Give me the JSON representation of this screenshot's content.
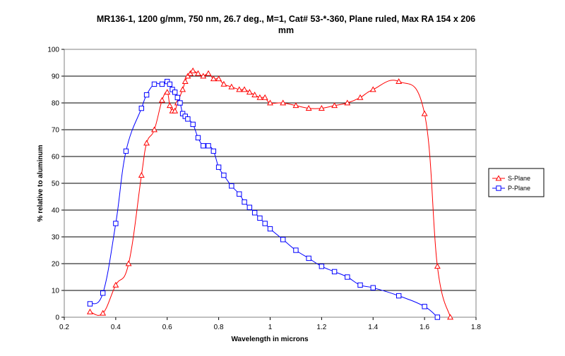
{
  "chart_data": {
    "type": "line",
    "title_lines": [
      "MR136-1, 1200 g/mm, 750 nm, 26.7 deg., M=1, Cat# 53-*-360, Plane ruled, Max RA 154 x 206",
      "mm"
    ],
    "xlabel": "Wavelength  in microns",
    "ylabel": "% relative to aluminum",
    "xlim": [
      0.2,
      1.8
    ],
    "ylim": [
      0,
      100
    ],
    "x_ticks": [
      0.2,
      0.4,
      0.6,
      0.8,
      1,
      1.2,
      1.4,
      1.6,
      1.8
    ],
    "x_tick_labels": [
      "0.2",
      "0.4",
      "0.6",
      "0.8",
      "1",
      "1.2",
      "1.4",
      "1.6",
      "1.8"
    ],
    "y_ticks": [
      0,
      10,
      20,
      30,
      40,
      50,
      60,
      70,
      80,
      90,
      100
    ],
    "y_tick_labels": [
      "0",
      "10",
      "20",
      "30",
      "40",
      "50",
      "60",
      "70",
      "80",
      "90",
      "100"
    ],
    "grid": "horizontal",
    "legend_position": "right",
    "series": [
      {
        "name": "S-Plane",
        "color": "#ff0000",
        "marker": "triangle",
        "points": [
          [
            0.3,
            2
          ],
          [
            0.35,
            1.5
          ],
          [
            0.4,
            12
          ],
          [
            0.45,
            20
          ],
          [
            0.5,
            53
          ],
          [
            0.52,
            65
          ],
          [
            0.55,
            70
          ],
          [
            0.58,
            81
          ],
          [
            0.6,
            84
          ],
          [
            0.61,
            79
          ],
          [
            0.62,
            77
          ],
          [
            0.63,
            77
          ],
          [
            0.64,
            80
          ],
          [
            0.66,
            85
          ],
          [
            0.67,
            88
          ],
          [
            0.68,
            90
          ],
          [
            0.69,
            91
          ],
          [
            0.7,
            92
          ],
          [
            0.72,
            91
          ],
          [
            0.74,
            90
          ],
          [
            0.76,
            91
          ],
          [
            0.78,
            89
          ],
          [
            0.8,
            89
          ],
          [
            0.82,
            87
          ],
          [
            0.85,
            86
          ],
          [
            0.88,
            85
          ],
          [
            0.9,
            85
          ],
          [
            0.92,
            84
          ],
          [
            0.94,
            83
          ],
          [
            0.96,
            82
          ],
          [
            0.98,
            82
          ],
          [
            1.0,
            80
          ],
          [
            1.05,
            80
          ],
          [
            1.1,
            79
          ],
          [
            1.15,
            78
          ],
          [
            1.2,
            78
          ],
          [
            1.25,
            79
          ],
          [
            1.3,
            80
          ],
          [
            1.35,
            82
          ],
          [
            1.4,
            85
          ],
          [
            1.5,
            88
          ],
          [
            1.6,
            76
          ],
          [
            1.65,
            19
          ],
          [
            1.7,
            0
          ]
        ]
      },
      {
        "name": "P-Plane",
        "color": "#0000ff",
        "marker": "square",
        "points": [
          [
            0.3,
            5
          ],
          [
            0.35,
            9
          ],
          [
            0.4,
            35
          ],
          [
            0.44,
            62
          ],
          [
            0.5,
            78
          ],
          [
            0.52,
            83
          ],
          [
            0.55,
            87
          ],
          [
            0.58,
            87
          ],
          [
            0.6,
            88
          ],
          [
            0.61,
            87
          ],
          [
            0.62,
            85
          ],
          [
            0.63,
            84
          ],
          [
            0.64,
            82
          ],
          [
            0.65,
            80
          ],
          [
            0.66,
            76
          ],
          [
            0.67,
            75
          ],
          [
            0.68,
            74
          ],
          [
            0.7,
            72
          ],
          [
            0.72,
            67
          ],
          [
            0.74,
            64
          ],
          [
            0.76,
            64
          ],
          [
            0.78,
            62
          ],
          [
            0.8,
            56
          ],
          [
            0.82,
            53
          ],
          [
            0.85,
            49
          ],
          [
            0.88,
            46
          ],
          [
            0.9,
            43
          ],
          [
            0.92,
            41
          ],
          [
            0.94,
            39
          ],
          [
            0.96,
            37
          ],
          [
            0.98,
            35
          ],
          [
            1.0,
            33
          ],
          [
            1.05,
            29
          ],
          [
            1.1,
            25
          ],
          [
            1.15,
            22
          ],
          [
            1.2,
            19
          ],
          [
            1.25,
            17
          ],
          [
            1.3,
            15
          ],
          [
            1.35,
            12
          ],
          [
            1.4,
            11
          ],
          [
            1.5,
            8
          ],
          [
            1.6,
            4
          ],
          [
            1.65,
            0
          ]
        ]
      }
    ]
  }
}
